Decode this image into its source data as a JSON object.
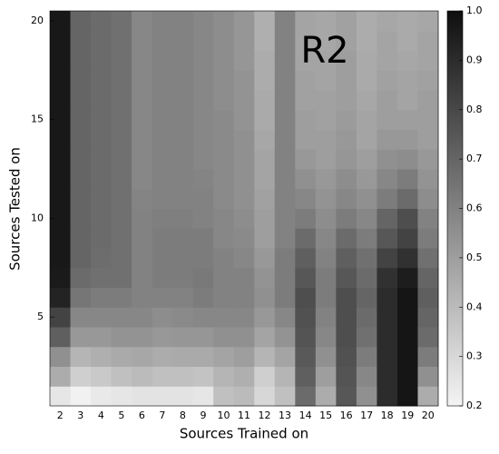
{
  "chart_data": {
    "type": "heatmap",
    "annotation": "R2",
    "xlabel": "Sources Trained on",
    "ylabel": "Sources Tested on",
    "x": [
      2,
      3,
      4,
      5,
      6,
      7,
      8,
      9,
      10,
      11,
      12,
      13,
      14,
      15,
      16,
      17,
      18,
      19,
      20
    ],
    "y": [
      null,
      null,
      null,
      null,
      5,
      null,
      null,
      null,
      null,
      10,
      null,
      null,
      null,
      null,
      15,
      null,
      null,
      null,
      null,
      20
    ],
    "values": [
      [
        0.25,
        0.21,
        0.24,
        0.25,
        0.26,
        0.26,
        0.26,
        0.25,
        0.38,
        0.4,
        0.3,
        0.38,
        0.68,
        0.45,
        0.75,
        0.55,
        0.9,
        0.98,
        0.45
      ],
      [
        0.45,
        0.33,
        0.35,
        0.38,
        0.4,
        0.38,
        0.38,
        0.37,
        0.42,
        0.44,
        0.33,
        0.42,
        0.72,
        0.5,
        0.76,
        0.58,
        0.9,
        0.98,
        0.55
      ],
      [
        0.55,
        0.42,
        0.44,
        0.46,
        0.47,
        0.45,
        0.46,
        0.46,
        0.48,
        0.5,
        0.42,
        0.48,
        0.74,
        0.55,
        0.77,
        0.62,
        0.9,
        0.98,
        0.62
      ],
      [
        0.72,
        0.52,
        0.52,
        0.54,
        0.54,
        0.52,
        0.53,
        0.53,
        0.55,
        0.55,
        0.48,
        0.54,
        0.76,
        0.58,
        0.78,
        0.66,
        0.9,
        0.98,
        0.68
      ],
      [
        0.82,
        0.58,
        0.58,
        0.58,
        0.58,
        0.56,
        0.57,
        0.58,
        0.58,
        0.58,
        0.52,
        0.58,
        0.77,
        0.6,
        0.78,
        0.68,
        0.9,
        0.98,
        0.7
      ],
      [
        0.93,
        0.64,
        0.62,
        0.62,
        0.6,
        0.6,
        0.6,
        0.62,
        0.6,
        0.6,
        0.55,
        0.62,
        0.78,
        0.62,
        0.78,
        0.7,
        0.9,
        0.98,
        0.72
      ],
      [
        0.96,
        0.68,
        0.66,
        0.66,
        0.6,
        0.62,
        0.62,
        0.63,
        0.6,
        0.6,
        0.54,
        0.62,
        0.75,
        0.62,
        0.75,
        0.68,
        0.88,
        0.95,
        0.7
      ],
      [
        0.97,
        0.7,
        0.67,
        0.66,
        0.6,
        0.62,
        0.62,
        0.62,
        0.6,
        0.58,
        0.52,
        0.62,
        0.72,
        0.6,
        0.72,
        0.66,
        0.82,
        0.88,
        0.66
      ],
      [
        0.97,
        0.7,
        0.68,
        0.66,
        0.6,
        0.62,
        0.62,
        0.62,
        0.58,
        0.57,
        0.5,
        0.6,
        0.68,
        0.58,
        0.68,
        0.62,
        0.75,
        0.82,
        0.62
      ],
      [
        0.97,
        0.7,
        0.68,
        0.66,
        0.6,
        0.61,
        0.61,
        0.6,
        0.58,
        0.56,
        0.5,
        0.6,
        0.62,
        0.56,
        0.62,
        0.58,
        0.7,
        0.78,
        0.6
      ],
      [
        0.97,
        0.7,
        0.68,
        0.66,
        0.59,
        0.6,
        0.6,
        0.6,
        0.57,
        0.55,
        0.49,
        0.6,
        0.58,
        0.54,
        0.58,
        0.55,
        0.62,
        0.68,
        0.56
      ],
      [
        0.97,
        0.7,
        0.68,
        0.66,
        0.58,
        0.6,
        0.6,
        0.59,
        0.57,
        0.55,
        0.48,
        0.6,
        0.55,
        0.52,
        0.56,
        0.52,
        0.58,
        0.62,
        0.54
      ],
      [
        0.97,
        0.7,
        0.68,
        0.66,
        0.58,
        0.6,
        0.6,
        0.58,
        0.57,
        0.55,
        0.48,
        0.6,
        0.52,
        0.5,
        0.53,
        0.5,
        0.55,
        0.56,
        0.52
      ],
      [
        0.97,
        0.7,
        0.68,
        0.66,
        0.58,
        0.6,
        0.6,
        0.58,
        0.57,
        0.55,
        0.47,
        0.6,
        0.5,
        0.5,
        0.52,
        0.48,
        0.52,
        0.52,
        0.5
      ],
      [
        0.97,
        0.7,
        0.68,
        0.66,
        0.58,
        0.6,
        0.6,
        0.58,
        0.57,
        0.54,
        0.46,
        0.6,
        0.5,
        0.49,
        0.51,
        0.48,
        0.5,
        0.5,
        0.5
      ],
      [
        0.97,
        0.7,
        0.68,
        0.66,
        0.58,
        0.6,
        0.6,
        0.58,
        0.56,
        0.54,
        0.46,
        0.6,
        0.49,
        0.49,
        0.5,
        0.47,
        0.5,
        0.48,
        0.5
      ],
      [
        0.97,
        0.7,
        0.68,
        0.66,
        0.58,
        0.6,
        0.6,
        0.58,
        0.56,
        0.54,
        0.45,
        0.6,
        0.49,
        0.48,
        0.5,
        0.46,
        0.49,
        0.48,
        0.49
      ],
      [
        0.97,
        0.7,
        0.68,
        0.66,
        0.58,
        0.6,
        0.6,
        0.58,
        0.56,
        0.53,
        0.45,
        0.6,
        0.48,
        0.48,
        0.5,
        0.46,
        0.48,
        0.47,
        0.48
      ],
      [
        0.97,
        0.7,
        0.68,
        0.66,
        0.58,
        0.6,
        0.6,
        0.58,
        0.56,
        0.53,
        0.44,
        0.6,
        0.48,
        0.47,
        0.49,
        0.45,
        0.48,
        0.46,
        0.48
      ],
      [
        0.97,
        0.7,
        0.68,
        0.66,
        0.58,
        0.6,
        0.6,
        0.58,
        0.56,
        0.53,
        0.44,
        0.6,
        0.48,
        0.47,
        0.49,
        0.45,
        0.47,
        0.46,
        0.47
      ]
    ],
    "colorscale": [
      "#f4f4f4",
      "#0f0f0f"
    ],
    "zlim": [
      0.2,
      1.0
    ],
    "zticks": [
      0.2,
      0.3,
      0.4,
      0.5,
      0.6,
      0.7,
      0.8,
      0.9,
      {
        "value": 1,
        "label": "1.0"
      }
    ]
  }
}
